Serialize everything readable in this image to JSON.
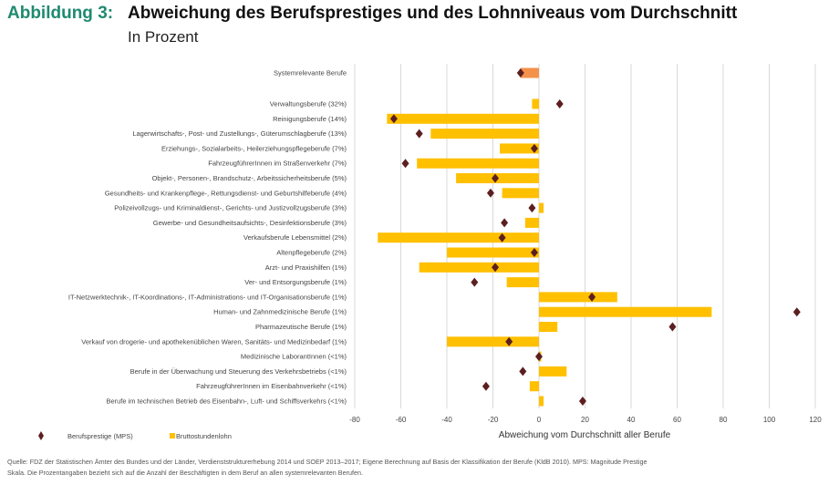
{
  "header": {
    "figure_label": "Abbildung 3:",
    "title": "Abweichung des Berufsprestiges und des Lohnniveaus vom Durchschnitt",
    "subtitle": "In Prozent"
  },
  "chart_data": {
    "type": "bar",
    "orientation": "horizontal",
    "xlabel": "Abweichung vom Durchschnitt aller Berufe",
    "xlim": [
      -80,
      120
    ],
    "xticks": [
      -80,
      -60,
      -40,
      -20,
      0,
      20,
      40,
      60,
      80,
      100,
      120
    ],
    "grid": true,
    "legend_position": "bottom-left",
    "categories": [
      "Systemrelevante Berufe",
      "Verwaltungsberufe (32%)",
      "Reinigungsberufe (14%)",
      "Lagerwirtschafts-, Post- und Zustellungs-, Güterumschlagberufe (13%)",
      "Erziehungs-, Sozialarbeits-, Heilerziehungspflegeberufe (7%)",
      "FahrzeugführerInnen im Straßenverkehr (7%)",
      "Objekt-, Personen-, Brandschutz-, Arbeitssicherheitsberufe (5%)",
      "Gesundheits- und Krankenpflege-, Rettungsdienst- und Geburtshilfeberufe (4%)",
      "Polizeivollzugs- und Kriminaldienst-, Gerichts- und Justizvollzugsberufe (3%)",
      "Gewerbe- und Gesundheitsaufsichts-, Desinfektionsberufe (3%)",
      "Verkaufsberufe Lebensmittel (2%)",
      "Altenpflegeberufe (2%)",
      "Arzt- und Praxishilfen (1%)",
      "Ver- und Entsorgungsberufe (1%)",
      "IT-Netzwerktechnik-, IT-Koordinations-, IT-Administrations- und IT-Organisationsberufe (1%)",
      "Human- und Zahnmedizinische Berufe (1%)",
      "Pharmazeutische Berufe (1%)",
      "Verkauf von drogerie- und apothekenüblichen Waren, Sanitäts- und Medizinbedarf  (1%)",
      "Medizinische LaborantInnen (<1%)",
      "Berufe in der Überwachung und Steuerung des Verkehrsbetriebs (<1%)",
      "FahrzeugführerInnen im Eisenbahnverkehr (<1%)",
      "Berufe im technischen Betrieb des Eisenbahn-, Luft- und Schiffsverkehrs (<1%)"
    ],
    "series": [
      {
        "name": "Bruttostundenlohn",
        "kind": "bar",
        "color": "#ffc000",
        "highlight_color": "#f4914a",
        "values": [
          -8,
          -3,
          -66,
          -47,
          -17,
          -53,
          -36,
          -16,
          2,
          -6,
          -70,
          -40,
          -52,
          -14,
          34,
          75,
          8,
          -40,
          1,
          12,
          -4,
          2
        ]
      },
      {
        "name": "Berufsprestige (MPS)",
        "kind": "diamond",
        "color": "#5c1f1f",
        "values": [
          -8,
          9,
          -63,
          -52,
          -2,
          -58,
          -19,
          -21,
          -3,
          -15,
          -16,
          -2,
          -19,
          -28,
          23,
          112,
          58,
          -13,
          0,
          -7,
          -23,
          19
        ]
      }
    ]
  },
  "footnote": [
    "Quelle: FDZ der Statistischen Ämter des Bundes und der Länder, Verdienststrukturerhebung 2014 und SOEP 2013–2017; Eigene Berechnung auf Basis der Klassifikation der Berufe (KldB 2010). MPS: Magnitude Prestige",
    "Skala. Die Prozentangaben bezieht sich auf die Anzahl der Beschäftigten in dem Beruf an allen systemrelevanten Berufen."
  ]
}
